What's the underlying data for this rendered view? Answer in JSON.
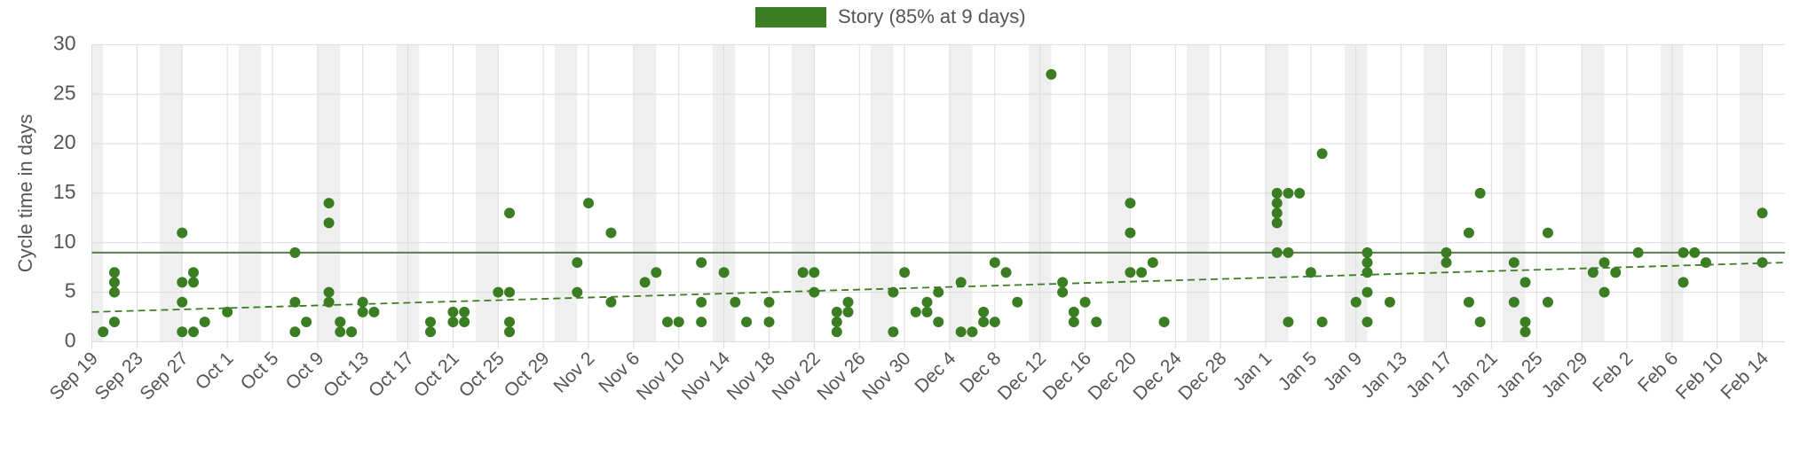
{
  "chart_data": {
    "type": "scatter",
    "y_label": "Cycle time in days",
    "xlim": [
      "Sep 19",
      "Feb 16"
    ],
    "xticks": [
      "Sep 19",
      "Sep 23",
      "Sep 27",
      "Oct 1",
      "Oct 5",
      "Oct 9",
      "Oct 13",
      "Oct 17",
      "Oct 21",
      "Oct 25",
      "Oct 29",
      "Nov 2",
      "Nov 6",
      "Nov 10",
      "Nov 14",
      "Nov 18",
      "Nov 22",
      "Nov 26",
      "Nov 30",
      "Dec 4",
      "Dec 8",
      "Dec 12",
      "Dec 16",
      "Dec 20",
      "Dec 24",
      "Dec 28",
      "Jan 1",
      "Jan 5",
      "Jan 9",
      "Jan 13",
      "Jan 17",
      "Jan 21",
      "Jan 25",
      "Jan 29",
      "Feb 2",
      "Feb 6",
      "Feb 10",
      "Feb 14"
    ],
    "ylim": [
      0,
      30
    ],
    "yticks": [
      0,
      5,
      10,
      15,
      20,
      25,
      30
    ],
    "grid": true,
    "legend": "top",
    "percentile_line": 9,
    "trend_line": [
      3,
      8
    ],
    "series": [
      {
        "name": "Story (85% at 9 days)",
        "color": "#3a7d22",
        "x": [
          "Sep 20",
          "Sep 21",
          "Sep 21",
          "Sep 21",
          "Sep 21",
          "Sep 27",
          "Sep 27",
          "Sep 27",
          "Sep 27",
          "Sep 28",
          "Sep 28",
          "Sep 28",
          "Sep 29",
          "Oct 1",
          "Oct 7",
          "Oct 7",
          "Oct 7",
          "Oct 8",
          "Oct 10",
          "Oct 10",
          "Oct 10",
          "Oct 10",
          "Oct 11",
          "Oct 11",
          "Oct 11",
          "Oct 12",
          "Oct 12",
          "Oct 13",
          "Oct 13",
          "Oct 14",
          "Oct 19",
          "Oct 19",
          "Oct 21",
          "Oct 21",
          "Oct 22",
          "Oct 22",
          "Oct 25",
          "Oct 26",
          "Oct 26",
          "Oct 26",
          "Oct 26",
          "Nov 1",
          "Nov 1",
          "Nov 2",
          "Nov 4",
          "Nov 4",
          "Nov 7",
          "Nov 8",
          "Nov 9",
          "Nov 10",
          "Nov 12",
          "Nov 12",
          "Nov 12",
          "Nov 14",
          "Nov 15",
          "Nov 16",
          "Nov 18",
          "Nov 18",
          "Nov 21",
          "Nov 22",
          "Nov 22",
          "Nov 24",
          "Nov 24",
          "Nov 24",
          "Nov 25",
          "Nov 25",
          "Nov 29",
          "Nov 29",
          "Nov 30",
          "Dec 1",
          "Dec 2",
          "Dec 2",
          "Dec 3",
          "Dec 3",
          "Dec 5",
          "Dec 5",
          "Dec 6",
          "Dec 7",
          "Dec 7",
          "Dec 8",
          "Dec 8",
          "Dec 9",
          "Dec 10",
          "Dec 13",
          "Dec 14",
          "Dec 14",
          "Dec 15",
          "Dec 15",
          "Dec 16",
          "Dec 17",
          "Dec 20",
          "Dec 20",
          "Dec 20",
          "Dec 21",
          "Dec 22",
          "Dec 23",
          "Jan 2",
          "Jan 2",
          "Jan 2",
          "Jan 2",
          "Jan 2",
          "Jan 3",
          "Jan 3",
          "Jan 3",
          "Jan 4",
          "Jan 5",
          "Jan 6",
          "Jan 6",
          "Jan 9",
          "Jan 10",
          "Jan 10",
          "Jan 10",
          "Jan 10",
          "Jan 10",
          "Jan 12",
          "Jan 17",
          "Jan 17",
          "Jan 19",
          "Jan 19",
          "Jan 20",
          "Jan 20",
          "Jan 23",
          "Jan 23",
          "Jan 24",
          "Jan 24",
          "Jan 24",
          "Jan 26",
          "Jan 26",
          "Jan 30",
          "Jan 31",
          "Jan 31",
          "Feb 1",
          "Feb 3",
          "Feb 7",
          "Feb 7",
          "Feb 8",
          "Feb 9",
          "Feb 14",
          "Feb 14"
        ],
        "values": [
          1,
          7,
          6,
          5,
          2,
          11,
          4,
          6,
          1,
          6,
          7,
          1,
          2,
          3,
          9,
          4,
          1,
          2,
          14,
          12,
          5,
          4,
          2,
          2,
          1,
          1,
          1,
          4,
          3,
          3,
          2,
          1,
          3,
          2,
          3,
          2,
          5,
          5,
          13,
          2,
          1,
          8,
          5,
          14,
          11,
          4,
          6,
          7,
          2,
          2,
          8,
          4,
          2,
          7,
          4,
          2,
          2,
          4,
          7,
          7,
          5,
          3,
          2,
          1,
          4,
          3,
          5,
          1,
          7,
          3,
          4,
          3,
          5,
          2,
          6,
          1,
          1,
          3,
          2,
          2,
          8,
          7,
          4,
          27,
          6,
          5,
          3,
          2,
          4,
          2,
          14,
          11,
          7,
          7,
          8,
          2,
          15,
          14,
          13,
          12,
          9,
          15,
          9,
          2,
          15,
          7,
          19,
          2,
          4,
          9,
          8,
          7,
          5,
          2,
          4,
          9,
          8,
          11,
          4,
          15,
          2,
          8,
          4,
          6,
          2,
          1,
          11,
          4,
          7,
          8,
          5,
          7,
          9,
          9,
          6,
          9,
          8,
          13,
          8
        ]
      }
    ]
  }
}
